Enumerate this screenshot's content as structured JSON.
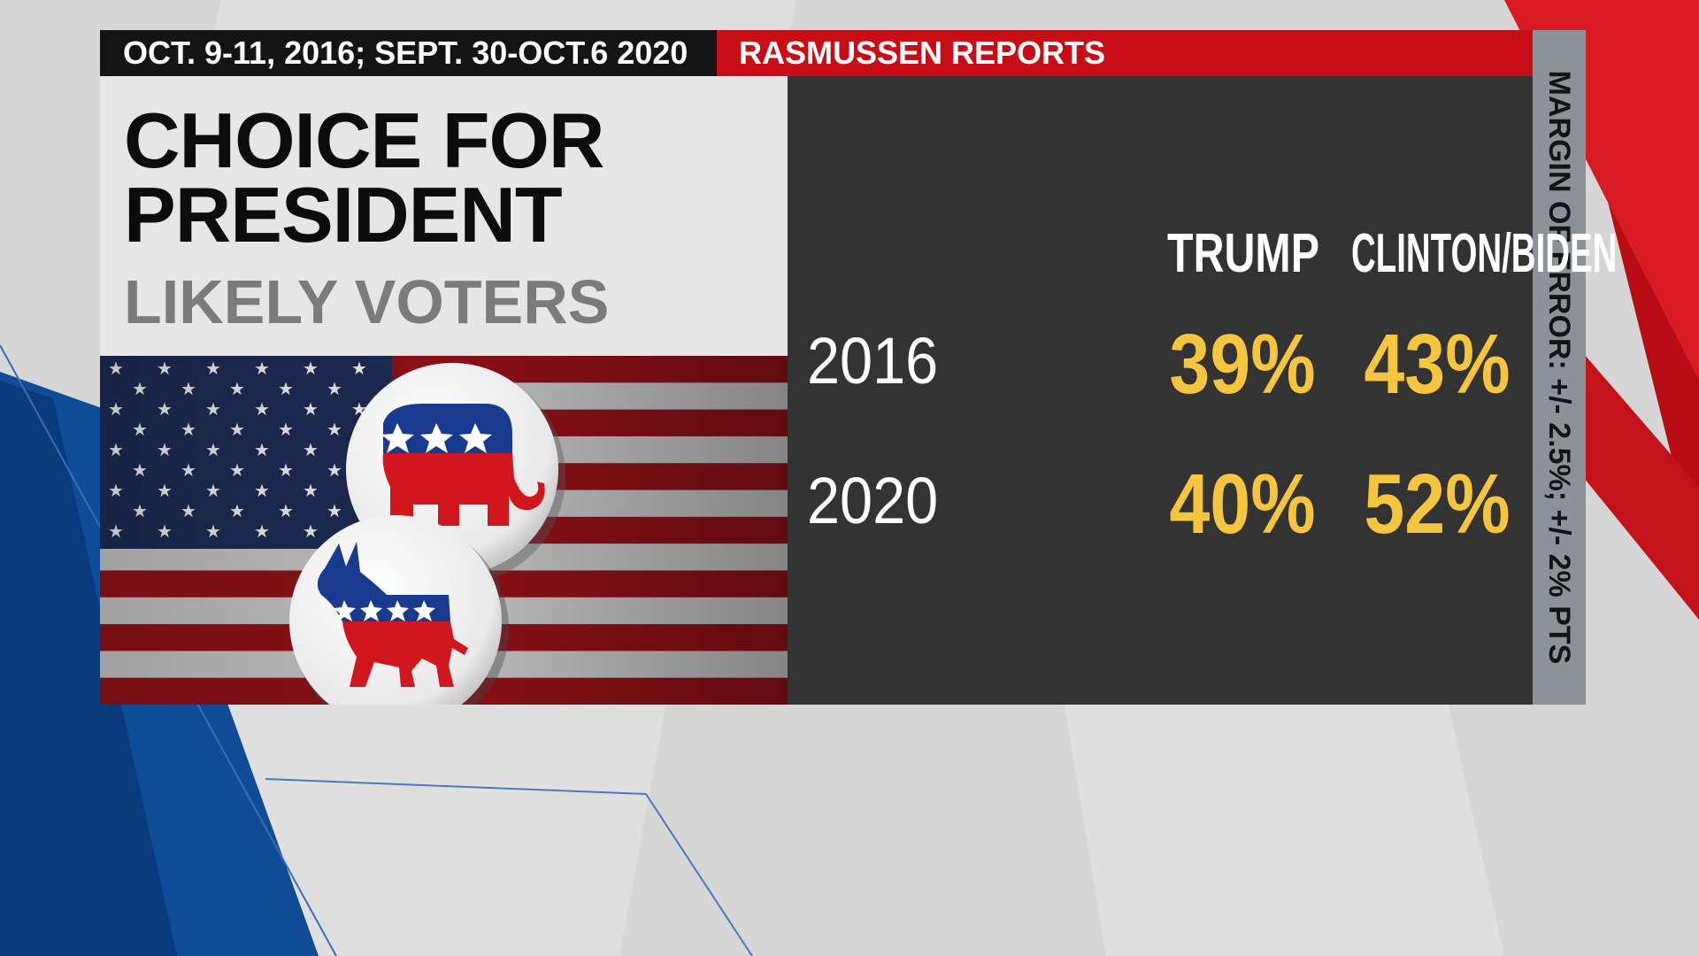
{
  "header": {
    "dates": "OCT. 9-11, 2016; SEPT. 30-OCT.6 2020",
    "source": "RASMUSSEN REPORTS"
  },
  "title": {
    "line1": "CHOICE FOR",
    "line2": "PRESIDENT",
    "subtitle": "LIKELY VOTERS"
  },
  "margin_of_error": "MARGIN OF ERROR: +/- 2.5%; +/- 2% PTS",
  "images": {
    "flag": "american-flag",
    "gop_button": "republican-elephant-button",
    "dem_button": "democratic-donkey-button"
  },
  "colors": {
    "accent_red": "#c70d16",
    "value_yellow": "#f5c53d",
    "panel_dark": "#333333",
    "gop_red": "#d0171e",
    "dem_blue": "#1a3a8f"
  },
  "chart_data": {
    "type": "table",
    "title": "CHOICE FOR PRESIDENT",
    "subtitle": "LIKELY VOTERS",
    "columns": [
      "TRUMP",
      "CLINTON/BIDEN"
    ],
    "rows": [
      {
        "label": "2016",
        "values": [
          "39%",
          "43%"
        ]
      },
      {
        "label": "2020",
        "values": [
          "40%",
          "52%"
        ]
      }
    ],
    "series": [
      {
        "name": "TRUMP",
        "values": [
          39,
          40
        ]
      },
      {
        "name": "CLINTON/BIDEN",
        "values": [
          43,
          52
        ]
      }
    ],
    "categories": [
      "2016",
      "2020"
    ]
  }
}
